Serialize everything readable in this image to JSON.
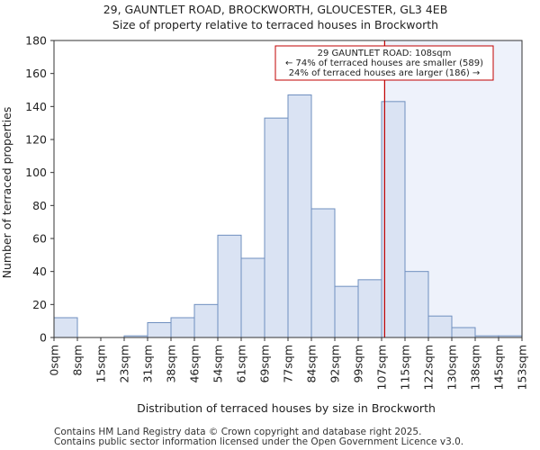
{
  "chart_data": {
    "type": "bar",
    "title": "29, GAUNTLET ROAD, BROCKWORTH, GLOUCESTER, GL3 4EB",
    "subtitle": "Size of property relative to terraced houses in Brockworth",
    "xlabel": "Distribution of terraced houses by size in Brockworth",
    "ylabel": "Number of terraced properties",
    "ylim": [
      0,
      180
    ],
    "yticks": [
      "0",
      "20",
      "40",
      "60",
      "80",
      "100",
      "120",
      "140",
      "160",
      "180"
    ],
    "tick_labels": [
      "0sqm",
      "8sqm",
      "15sqm",
      "23sqm",
      "31sqm",
      "38sqm",
      "46sqm",
      "54sqm",
      "61sqm",
      "69sqm",
      "77sqm",
      "84sqm",
      "92sqm",
      "99sqm",
      "107sqm",
      "115sqm",
      "122sqm",
      "130sqm",
      "138sqm",
      "145sqm",
      "153sqm"
    ],
    "values": [
      12,
      0,
      0,
      1,
      9,
      12,
      20,
      62,
      48,
      133,
      147,
      78,
      31,
      35,
      143,
      40,
      13,
      6,
      1,
      1
    ],
    "marker_value_bins": 14.13,
    "bar_color": "#dae3f3",
    "bar_edge_color": "#6f8fbf",
    "marker_color": "#c00000",
    "highlight_fill": "#eef2fb",
    "annotation": {
      "line1": "29 GAUNTLET ROAD: 108sqm",
      "line2": "← 74% of terraced houses are smaller (589)",
      "line3": "24% of terraced houses are larger (186) →"
    }
  },
  "footer": {
    "line1": "Contains HM Land Registry data © Crown copyright and database right 2025.",
    "line2": "Contains public sector information licensed under the Open Government Licence v3.0."
  }
}
